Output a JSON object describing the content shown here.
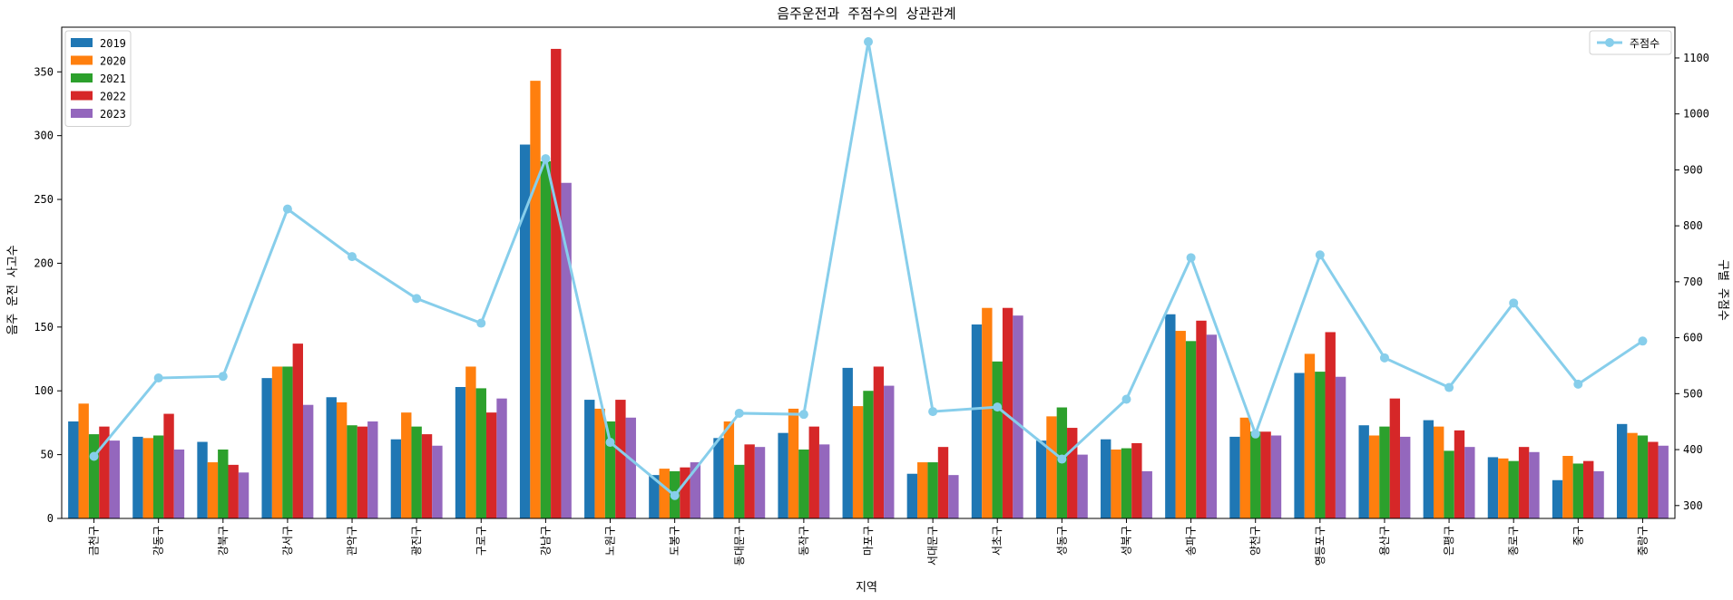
{
  "chart_data": {
    "type": "bar",
    "title": "음주운전과 주점수의 상관관계",
    "xlabel": "지역",
    "ylabel": "음주 운전 사고수",
    "ylabel_color": "#ff0000",
    "y2label": "구별 주점수",
    "y2label_color": "#87ceeb",
    "ylim": [
      0,
      385
    ],
    "y2lim": [
      277,
      1155
    ],
    "yticks": [
      0,
      50,
      100,
      150,
      200,
      250,
      300,
      350
    ],
    "y2ticks": [
      300,
      400,
      500,
      600,
      700,
      800,
      900,
      1000,
      1100
    ],
    "categories": [
      "금천구",
      "강동구",
      "강북구",
      "강서구",
      "관악구",
      "광진구",
      "구로구",
      "강남구",
      "노원구",
      "도봉구",
      "동대문구",
      "동작구",
      "마포구",
      "서대문구",
      "서초구",
      "성동구",
      "성북구",
      "송파구",
      "양천구",
      "영등포구",
      "용산구",
      "은평구",
      "종로구",
      "중구",
      "중랑구"
    ],
    "series": [
      {
        "name": "2019",
        "color": "#1f77b4",
        "values": [
          76,
          64,
          60,
          110,
          95,
          62,
          103,
          293,
          93,
          34,
          63,
          67,
          118,
          35,
          152,
          61,
          62,
          160,
          64,
          114,
          73,
          77,
          48,
          30,
          74
        ]
      },
      {
        "name": "2020",
        "color": "#ff7f0e",
        "values": [
          90,
          63,
          44,
          119,
          91,
          83,
          119,
          343,
          86,
          39,
          76,
          86,
          88,
          44,
          165,
          80,
          54,
          147,
          79,
          129,
          65,
          72,
          47,
          49,
          67
        ]
      },
      {
        "name": "2021",
        "color": "#2ca02c",
        "values": [
          66,
          65,
          54,
          119,
          73,
          72,
          102,
          280,
          76,
          37,
          42,
          54,
          100,
          44,
          123,
          87,
          55,
          139,
          68,
          115,
          72,
          53,
          45,
          43,
          65
        ]
      },
      {
        "name": "2022",
        "color": "#d62728",
        "values": [
          72,
          82,
          42,
          137,
          72,
          66,
          83,
          368,
          93,
          40,
          58,
          72,
          119,
          56,
          165,
          71,
          59,
          155,
          68,
          146,
          94,
          69,
          56,
          45,
          60
        ]
      },
      {
        "name": "2023",
        "color": "#9467bd",
        "values": [
          61,
          54,
          36,
          89,
          76,
          57,
          94,
          263,
          79,
          44,
          56,
          58,
          104,
          34,
          159,
          50,
          37,
          144,
          65,
          111,
          64,
          56,
          52,
          37,
          57
        ]
      }
    ],
    "line": {
      "name": "주점수",
      "color": "#87ceeb",
      "values": [
        388,
        528,
        531,
        830,
        745,
        670,
        626,
        920,
        413,
        318,
        465,
        463,
        1129,
        468,
        476,
        383,
        490,
        743,
        428,
        748,
        564,
        511,
        662,
        517,
        594
      ]
    },
    "legend_left": "top-left",
    "legend_right": "top-right",
    "grid": false
  }
}
